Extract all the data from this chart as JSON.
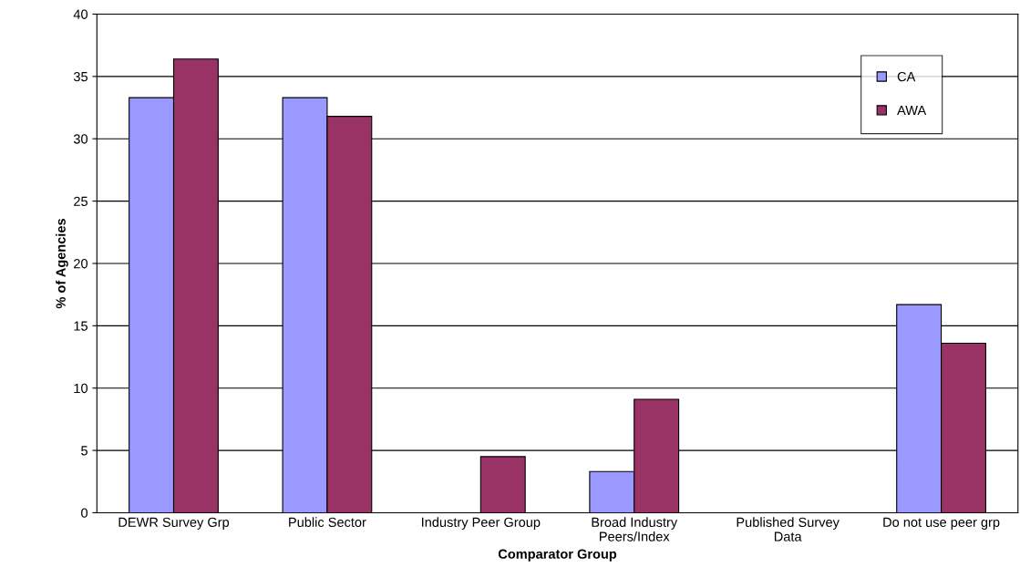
{
  "chart_data": {
    "type": "bar",
    "xlabel": "Comparator Group",
    "ylabel": "% of Agencies",
    "categories": [
      "DEWR Survey Grp",
      "Public Sector",
      "Industry Peer Group",
      "Broad Industry\nPeers/Index",
      "Published Survey\nData",
      "Do not use peer grp"
    ],
    "series": [
      {
        "name": "CA",
        "color": "#9999ff",
        "values": [
          33.3,
          33.3,
          0,
          3.3,
          0,
          16.7
        ]
      },
      {
        "name": "AWA",
        "color": "#993366",
        "values": [
          36.4,
          31.8,
          4.5,
          9.1,
          0,
          13.6
        ]
      }
    ],
    "ylim": [
      0,
      40
    ],
    "yticks": [
      0,
      5,
      10,
      15,
      20,
      25,
      30,
      35,
      40
    ],
    "grid": "y",
    "legend": "top right"
  }
}
